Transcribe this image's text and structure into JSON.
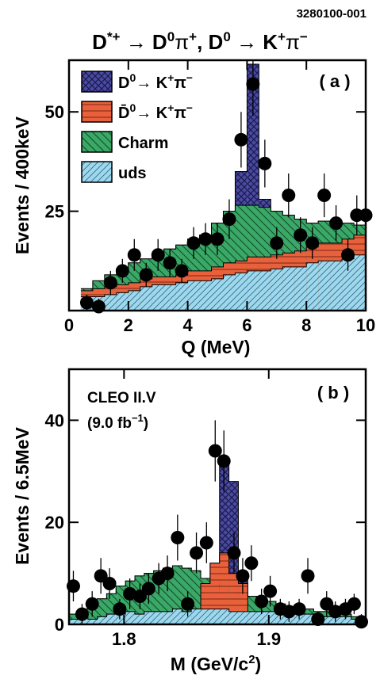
{
  "figure_id": "3280100-001",
  "title_parts": {
    "a": "D",
    "b": "*+",
    "c": " → D",
    "d": "0",
    "e": "π",
    "f": "+",
    "g": ", D",
    "h": "0",
    "i": " → K",
    "j": "+",
    "k": "π",
    "l": "−"
  },
  "colors": {
    "signal": "#4a4aa0",
    "dbar": "#e8603c",
    "charm": "#3aa866",
    "uds": "#9fd8ec",
    "points": "#000000"
  },
  "chart_data": [
    {
      "type": "histogram",
      "panel_label": "( a )",
      "xlabel": "Q (MeV)",
      "ylabel": "Events / 400keV",
      "xlim": [
        0,
        10
      ],
      "ylim": [
        0,
        63
      ],
      "xticks": [
        "0",
        "2",
        "4",
        "6",
        "8",
        "10"
      ],
      "yticks": [
        "25",
        "50"
      ],
      "legend_position": "top-left",
      "legend": [
        {
          "key": "signal",
          "parts": [
            "D",
            "0",
            "→ K",
            "+",
            "π",
            "−"
          ]
        },
        {
          "key": "dbar",
          "parts": [
            "D̄",
            "0",
            "→ K",
            "+",
            "π",
            "−"
          ]
        },
        {
          "key": "charm",
          "parts": [
            "Charm"
          ]
        },
        {
          "key": "uds",
          "parts": [
            "uds"
          ]
        }
      ],
      "bin_edges": [
        0.4,
        0.8,
        1.2,
        1.6,
        2.0,
        2.4,
        2.8,
        3.2,
        3.6,
        4.0,
        4.4,
        4.8,
        5.2,
        5.6,
        6.0,
        6.4,
        6.8,
        7.2,
        7.6,
        8.0,
        8.4,
        8.8,
        9.2,
        9.6,
        10.0
      ],
      "stack_totals": {
        "uds": [
          3.5,
          3.5,
          4,
          4.5,
          5,
          6,
          6.5,
          6.5,
          7,
          7.5,
          7.5,
          8,
          9,
          9.5,
          10,
          10,
          10.5,
          11,
          11,
          12,
          12.5,
          12.5,
          13,
          14
        ],
        "dbar": [
          5,
          5.5,
          6,
          6.5,
          7,
          8,
          8.5,
          8.5,
          9,
          10,
          10,
          11,
          12,
          12.5,
          13.5,
          13.5,
          14,
          14.5,
          15,
          16,
          17,
          17,
          18,
          19
        ],
        "charm": [
          5.5,
          7.5,
          9,
          10.5,
          12,
          13,
          14,
          15.5,
          16.5,
          18,
          19,
          22,
          25,
          26.5,
          26.5,
          26,
          25,
          24,
          23,
          22,
          22.5,
          22,
          22,
          21.5
        ],
        "signal": [
          5.5,
          7.5,
          9,
          10.5,
          12,
          13,
          14,
          15.5,
          16.5,
          18,
          19,
          22,
          25,
          35,
          62,
          28,
          25,
          24,
          23,
          22,
          22.5,
          22,
          22,
          21.5
        ]
      },
      "points": [
        {
          "x": 0.6,
          "y": 2,
          "err": 2
        },
        {
          "x": 1.0,
          "y": 1,
          "err": 2
        },
        {
          "x": 1.4,
          "y": 7,
          "err": 3
        },
        {
          "x": 1.8,
          "y": 10,
          "err": 3
        },
        {
          "x": 2.2,
          "y": 14,
          "err": 4
        },
        {
          "x": 2.6,
          "y": 9,
          "err": 3
        },
        {
          "x": 3.0,
          "y": 14,
          "err": 4
        },
        {
          "x": 3.4,
          "y": 12,
          "err": 3.5
        },
        {
          "x": 3.8,
          "y": 10,
          "err": 3
        },
        {
          "x": 4.2,
          "y": 17,
          "err": 4
        },
        {
          "x": 4.6,
          "y": 18,
          "err": 4
        },
        {
          "x": 5.0,
          "y": 18,
          "err": 4
        },
        {
          "x": 5.4,
          "y": 23,
          "err": 5
        },
        {
          "x": 5.8,
          "y": 43,
          "err": 7
        },
        {
          "x": 6.2,
          "y": 57,
          "err": 8
        },
        {
          "x": 6.6,
          "y": 37,
          "err": 6
        },
        {
          "x": 7.0,
          "y": 17,
          "err": 4
        },
        {
          "x": 7.4,
          "y": 29,
          "err": 5.5
        },
        {
          "x": 7.8,
          "y": 19,
          "err": 4.5
        },
        {
          "x": 8.2,
          "y": 17,
          "err": 4
        },
        {
          "x": 8.6,
          "y": 29,
          "err": 5.5
        },
        {
          "x": 9.0,
          "y": 22,
          "err": 4.5
        },
        {
          "x": 9.4,
          "y": 14,
          "err": 4
        },
        {
          "x": 9.7,
          "y": 24,
          "err": 5
        },
        {
          "x": 10.0,
          "y": 24,
          "err": 5
        }
      ]
    },
    {
      "type": "histogram",
      "panel_label": "( b )",
      "annotation_lines": [
        "CLEO II.V"
      ],
      "annotation_lumi": {
        "pre": "(9.0 fb",
        "sup": "−1",
        "post": ")"
      },
      "xlabel_parts": {
        "pre": "M (GeV/c",
        "sup": "2",
        "post": ")"
      },
      "ylabel": "Events / 6.5MeV",
      "xlim": [
        1.762,
        1.967
      ],
      "ylim": [
        0,
        50
      ],
      "xticks": [
        "1.8",
        "1.9"
      ],
      "xtick_values": [
        1.8,
        1.9
      ],
      "yticks": [
        "0",
        "20",
        "40"
      ],
      "ytick_values": [
        0,
        20,
        40
      ],
      "bin_edges": [
        1.762,
        1.7685,
        1.775,
        1.7815,
        1.788,
        1.7945,
        1.801,
        1.8075,
        1.814,
        1.8205,
        1.827,
        1.8335,
        1.84,
        1.8465,
        1.853,
        1.8595,
        1.866,
        1.8725,
        1.879,
        1.8855,
        1.892,
        1.8985,
        1.905,
        1.9115,
        1.918,
        1.9245,
        1.931,
        1.9375,
        1.944,
        1.9505,
        1.957,
        1.9635,
        1.967
      ],
      "stack_totals": {
        "uds": [
          1,
          1.5,
          1,
          1.5,
          2,
          2,
          2.5,
          2,
          2.5,
          2.5,
          2.5,
          3,
          2.5,
          3,
          3,
          3,
          3,
          2.5,
          2.5,
          2.5,
          2.5,
          2.5,
          2,
          2,
          2,
          2,
          1.5,
          1.5,
          1.5,
          1.5,
          1
        ],
        "dbar": [
          1,
          1.5,
          1,
          1.5,
          2,
          2,
          2.5,
          2,
          2.5,
          2.5,
          2.5,
          3,
          2.5,
          3,
          8,
          12,
          14,
          10,
          8,
          2.5,
          2.5,
          2.5,
          2,
          2,
          2,
          2,
          1.5,
          1.5,
          1.5,
          1.5,
          1
        ],
        "charm": [
          2,
          3,
          4,
          5,
          6,
          7.5,
          8.5,
          9.5,
          10,
          10.5,
          11,
          11.5,
          11,
          10.5,
          9,
          8,
          7,
          6.5,
          6,
          5.5,
          5,
          4.5,
          4,
          3.5,
          3,
          3,
          2.5,
          2.5,
          2,
          2,
          1.5
        ],
        "signal": [
          2,
          3,
          4,
          5,
          6,
          7.5,
          8.5,
          9.5,
          10,
          10.5,
          11,
          11.5,
          11,
          10.5,
          9,
          12,
          32,
          28,
          10,
          5.5,
          5,
          4.5,
          4,
          3.5,
          3,
          3,
          2.5,
          2.5,
          2,
          2,
          1.5
        ]
      },
      "points": [
        {
          "x": 1.765,
          "y": 7.5,
          "err": 3
        },
        {
          "x": 1.771,
          "y": 2,
          "err": 2
        },
        {
          "x": 1.778,
          "y": 4,
          "err": 2.5
        },
        {
          "x": 1.784,
          "y": 9.5,
          "err": 3.5
        },
        {
          "x": 1.79,
          "y": 8,
          "err": 3
        },
        {
          "x": 1.797,
          "y": 3,
          "err": 2
        },
        {
          "x": 1.804,
          "y": 6,
          "err": 3
        },
        {
          "x": 1.811,
          "y": 5.5,
          "err": 2.5
        },
        {
          "x": 1.817,
          "y": 7,
          "err": 3
        },
        {
          "x": 1.824,
          "y": 9,
          "err": 3
        },
        {
          "x": 1.83,
          "y": 10,
          "err": 3.5
        },
        {
          "x": 1.837,
          "y": 17,
          "err": 4.5
        },
        {
          "x": 1.844,
          "y": 4,
          "err": 2.5
        },
        {
          "x": 1.85,
          "y": 14,
          "err": 4
        },
        {
          "x": 1.857,
          "y": 16,
          "err": 4
        },
        {
          "x": 1.863,
          "y": 34,
          "err": 6
        },
        {
          "x": 1.869,
          "y": 32,
          "err": 6
        },
        {
          "x": 1.876,
          "y": 14,
          "err": 4
        },
        {
          "x": 1.882,
          "y": 9.5,
          "err": 3.5
        },
        {
          "x": 1.888,
          "y": 12,
          "err": 3.5
        },
        {
          "x": 1.895,
          "y": 4.5,
          "err": 2.5
        },
        {
          "x": 1.901,
          "y": 6.5,
          "err": 3
        },
        {
          "x": 1.908,
          "y": 3,
          "err": 2
        },
        {
          "x": 1.914,
          "y": 2.5,
          "err": 2
        },
        {
          "x": 1.921,
          "y": 3,
          "err": 2
        },
        {
          "x": 1.927,
          "y": 9.5,
          "err": 3.5
        },
        {
          "x": 1.934,
          "y": 1,
          "err": 1.5
        },
        {
          "x": 1.94,
          "y": 4,
          "err": 2.5
        },
        {
          "x": 1.946,
          "y": 2.5,
          "err": 2
        },
        {
          "x": 1.953,
          "y": 3,
          "err": 2
        },
        {
          "x": 1.959,
          "y": 4,
          "err": 2
        },
        {
          "x": 1.964,
          "y": 0.5,
          "err": 1.5
        }
      ]
    }
  ]
}
